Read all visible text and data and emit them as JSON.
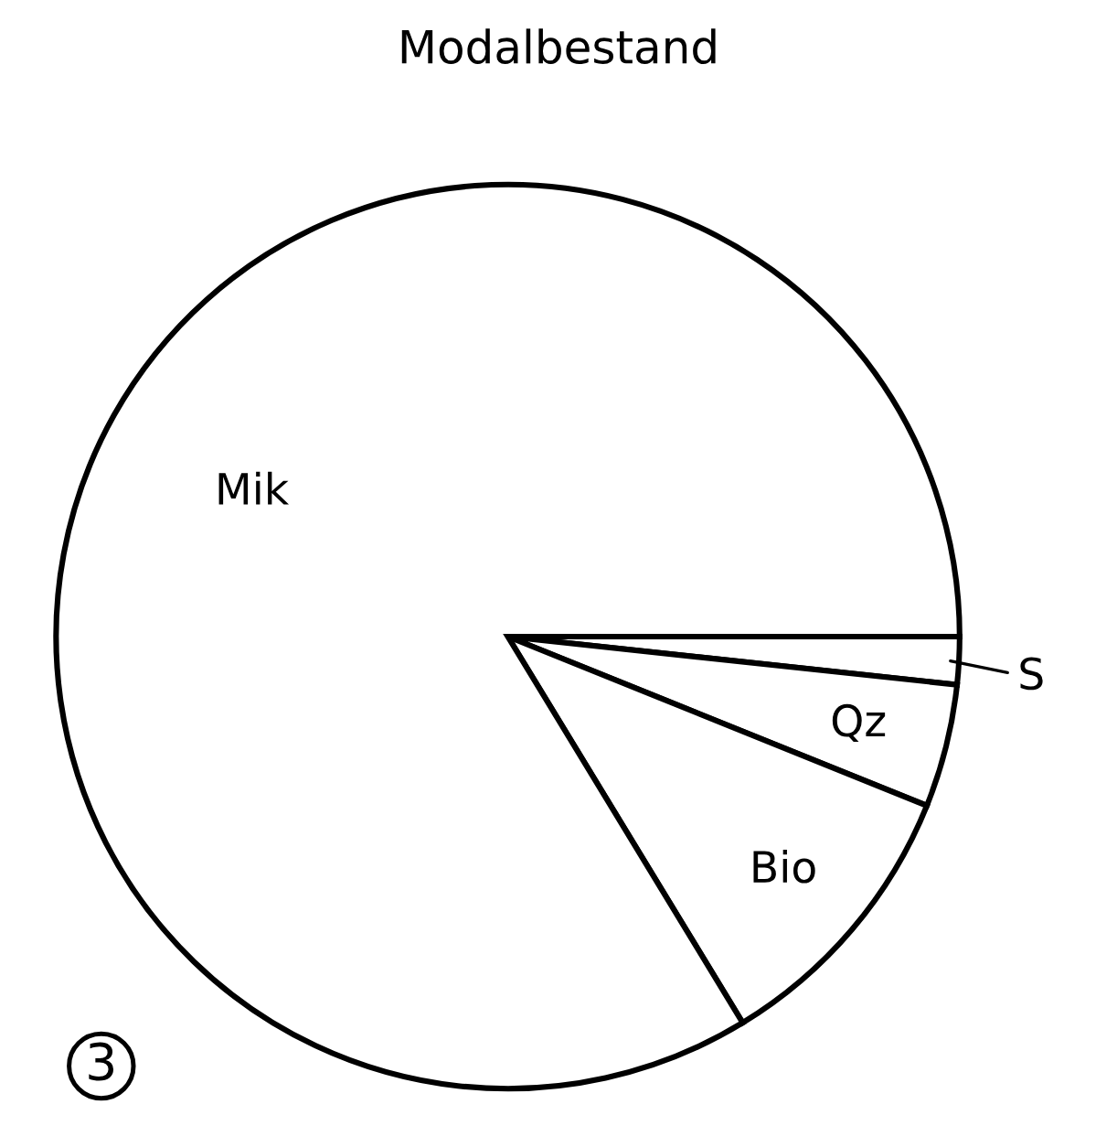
{
  "chart_data": {
    "type": "pie",
    "title": "Modalbestand",
    "categories": [
      "S",
      "Qz",
      "Bio",
      "Mik"
    ],
    "values": [
      1.7,
      4.4,
      10.2,
      83.7
    ],
    "colors": [
      "#ffffff",
      "#ffffff",
      "#ffffff",
      "#ffffff"
    ],
    "annotations": [
      "3"
    ]
  }
}
